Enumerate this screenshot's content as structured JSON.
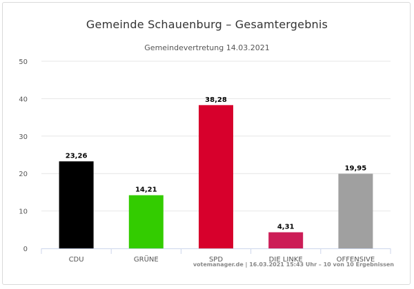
{
  "chart_data": {
    "type": "bar",
    "title": "Gemeinde Schauenburg – Gesamtergebnis",
    "subtitle": "Gemeindevertretung 14.03.2021",
    "categories": [
      "CDU",
      "GRÜNE",
      "SPD",
      "DIE LINKE",
      "OFFENSIVE"
    ],
    "values": [
      23.26,
      14.21,
      38.28,
      4.31,
      19.95
    ],
    "value_labels": [
      "23,26",
      "14,21",
      "38,28",
      "4,31",
      "19,95"
    ],
    "colors": [
      "#000000",
      "#33cc00",
      "#d7002c",
      "#cc1d57",
      "#a0a0a0"
    ],
    "ylim": [
      0,
      50
    ],
    "yticks": [
      0,
      10,
      20,
      30,
      40,
      50
    ],
    "grid": true,
    "xlabel": "",
    "ylabel": ""
  },
  "footer": "votemanager.de | 16.03.2021 15:43 Uhr – 10 von 10 Ergebnissen"
}
